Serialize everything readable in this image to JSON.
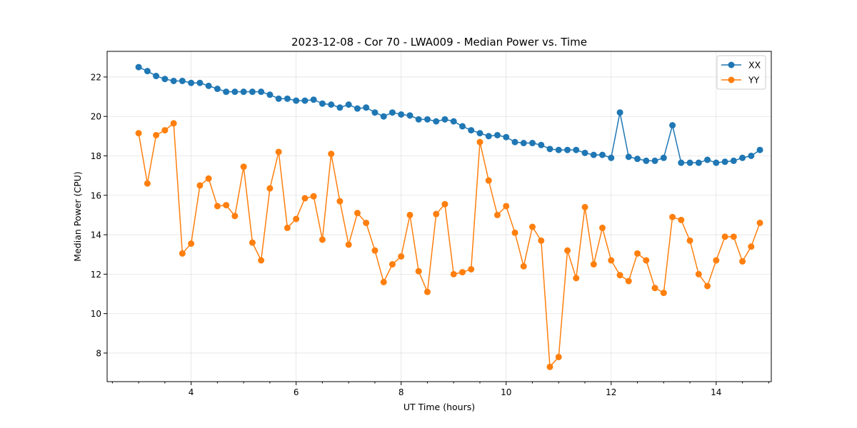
{
  "chart_data": {
    "type": "line",
    "title": "2023-12-08 - Cor 70 - LWA009 - Median Power vs. Time",
    "xlabel": "UT Time (hours)",
    "ylabel": "Median Power (CPU)",
    "xlim": [
      2.4,
      15.05
    ],
    "ylim": [
      6.55,
      23.3
    ],
    "xticks": [
      4,
      6,
      8,
      10,
      12,
      14
    ],
    "yticks": [
      8,
      10,
      12,
      14,
      16,
      18,
      20,
      22
    ],
    "xtick_labels": [
      "4",
      "6",
      "8",
      "10",
      "12",
      "14"
    ],
    "ytick_labels": [
      "8",
      "10",
      "12",
      "14",
      "16",
      "18",
      "20",
      "22"
    ],
    "grid": true,
    "legend_position": "top-right",
    "x": [
      3.0,
      3.167,
      3.333,
      3.5,
      3.667,
      3.833,
      4.0,
      4.167,
      4.333,
      4.5,
      4.667,
      4.833,
      5.0,
      5.167,
      5.333,
      5.5,
      5.667,
      5.833,
      6.0,
      6.167,
      6.333,
      6.5,
      6.667,
      6.833,
      7.0,
      7.167,
      7.333,
      7.5,
      7.667,
      7.833,
      8.0,
      8.167,
      8.333,
      8.5,
      8.667,
      8.833,
      9.0,
      9.167,
      9.333,
      9.5,
      9.667,
      9.833,
      10.0,
      10.167,
      10.333,
      10.5,
      10.667,
      10.833,
      11.0,
      11.167,
      11.333,
      11.5,
      11.667,
      11.833,
      12.0,
      12.167,
      12.333,
      12.5,
      12.667,
      12.833,
      13.0,
      13.167,
      13.333,
      13.5,
      13.667,
      13.833,
      14.0,
      14.167,
      14.333,
      14.5,
      14.667,
      14.833
    ],
    "series": [
      {
        "name": "XX",
        "color": "#1f77b4",
        "values": [
          22.5,
          22.3,
          22.05,
          21.9,
          21.8,
          21.8,
          21.7,
          21.7,
          21.55,
          21.4,
          21.25,
          21.25,
          21.25,
          21.25,
          21.25,
          21.1,
          20.9,
          20.9,
          20.8,
          20.8,
          20.85,
          20.65,
          20.6,
          20.45,
          20.6,
          20.4,
          20.45,
          20.2,
          20.0,
          20.2,
          20.1,
          20.05,
          19.85,
          19.85,
          19.75,
          19.85,
          19.75,
          19.5,
          19.3,
          19.15,
          19.0,
          19.05,
          18.95,
          18.7,
          18.65,
          18.65,
          18.55,
          18.35,
          18.3,
          18.3,
          18.3,
          18.15,
          18.05,
          18.05,
          17.9,
          20.2,
          17.95,
          17.85,
          17.75,
          17.75,
          17.9,
          19.55,
          17.65,
          17.65,
          17.65,
          17.8,
          17.65,
          17.7,
          17.75,
          17.9,
          18.0,
          18.3
        ]
      },
      {
        "name": "YY",
        "color": "#ff7f0e",
        "values": [
          19.15,
          16.6,
          19.05,
          19.3,
          19.65,
          13.05,
          13.55,
          16.5,
          16.85,
          15.45,
          15.5,
          14.95,
          17.45,
          13.6,
          12.7,
          16.35,
          18.2,
          14.35,
          14.8,
          15.85,
          15.95,
          13.75,
          18.1,
          15.7,
          13.5,
          15.1,
          14.6,
          13.2,
          11.6,
          12.5,
          12.9,
          15.0,
          12.15,
          11.1,
          15.05,
          15.55,
          12.0,
          12.1,
          12.25,
          18.7,
          16.75,
          15.0,
          15.45,
          14.1,
          12.4,
          14.4,
          13.7,
          7.3,
          7.8,
          13.2,
          11.8,
          15.4,
          12.5,
          14.35,
          12.7,
          11.95,
          11.65,
          13.05,
          12.7,
          11.3,
          11.05,
          14.9,
          14.75,
          13.7,
          12.0,
          11.4,
          12.7,
          13.9,
          13.9,
          12.65,
          13.4,
          14.6
        ]
      }
    ]
  }
}
